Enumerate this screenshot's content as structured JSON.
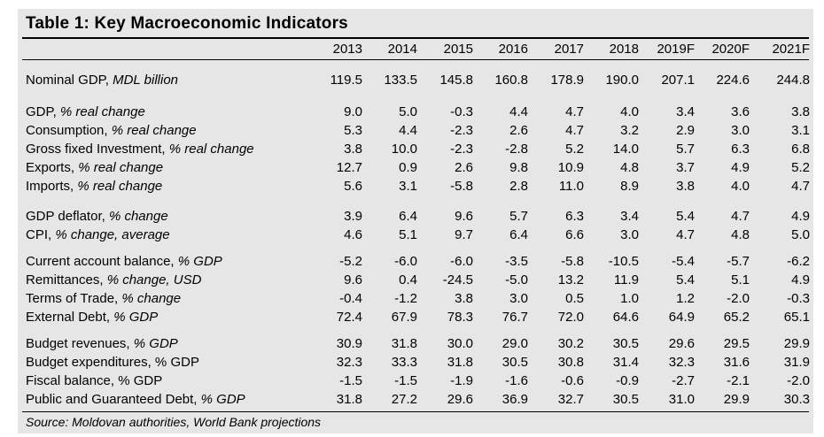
{
  "title": "Table 1: Key Macroeconomic Indicators",
  "years": [
    "2013",
    "2014",
    "2015",
    "2016",
    "2017",
    "2018",
    "2019F",
    "2020F",
    "2021F"
  ],
  "rows": [
    {
      "label": "Nominal GDP, ",
      "unit": "MDL billion",
      "values": [
        "119.5",
        "133.5",
        "145.8",
        "160.8",
        "178.9",
        "190.0",
        "207.1",
        "224.6",
        "244.8"
      ]
    },
    {
      "label": "GDP, ",
      "unit": "% real change",
      "values": [
        "9.0",
        "5.0",
        "-0.3",
        "4.4",
        "4.7",
        "4.0",
        "3.4",
        "3.6",
        "3.8"
      ]
    },
    {
      "label": "Consumption, ",
      "unit": "% real change",
      "values": [
        "5.3",
        "4.4",
        "-2.3",
        "2.6",
        "4.7",
        "3.2",
        "2.9",
        "3.0",
        "3.1"
      ]
    },
    {
      "label": "Gross fixed Investment, ",
      "unit": "% real change",
      "values": [
        "3.8",
        "10.0",
        "-2.3",
        "-2.8",
        "5.2",
        "14.0",
        "5.7",
        "6.3",
        "6.8"
      ]
    },
    {
      "label": "Exports, ",
      "unit": "% real change",
      "values": [
        "12.7",
        "0.9",
        "2.6",
        "9.8",
        "10.9",
        "4.8",
        "3.7",
        "4.9",
        "5.2"
      ]
    },
    {
      "label": "Imports, ",
      "unit": "% real change",
      "values": [
        "5.6",
        "3.1",
        "-5.8",
        "2.8",
        "11.0",
        "8.9",
        "3.8",
        "4.0",
        "4.7"
      ]
    },
    {
      "label": "GDP deflator, ",
      "unit": "% change",
      "values": [
        "3.9",
        "6.4",
        "9.6",
        "5.7",
        "6.3",
        "3.4",
        "5.4",
        "4.7",
        "4.9"
      ]
    },
    {
      "label": "CPI, ",
      "unit": "% change, average",
      "values": [
        "4.6",
        "5.1",
        "9.7",
        "6.4",
        "6.6",
        "3.0",
        "4.7",
        "4.8",
        "5.0"
      ]
    },
    {
      "label": "Current account balance, ",
      "unit": "% GDP",
      "values": [
        "-5.2",
        "-6.0",
        "-6.0",
        "-3.5",
        "-5.8",
        "-10.5",
        "-5.4",
        "-5.7",
        "-6.2"
      ]
    },
    {
      "label": "Remittances, ",
      "unit": "% change, USD",
      "values": [
        "9.6",
        "0.4",
        "-24.5",
        "-5.0",
        "13.2",
        "11.9",
        "5.4",
        "5.1",
        "4.9"
      ]
    },
    {
      "label": "Terms of Trade, ",
      "unit": "% change",
      "values": [
        "-0.4",
        "-1.2",
        "3.8",
        "3.0",
        "0.5",
        "1.0",
        "1.2",
        "-2.0",
        "-0.3"
      ]
    },
    {
      "label": "External Debt, ",
      "unit": "% GDP",
      "values": [
        "72.4",
        "67.9",
        "78.3",
        "76.7",
        "72.0",
        "64.6",
        "64.9",
        "65.2",
        "65.1"
      ]
    },
    {
      "label": "Budget revenues, ",
      "unit": "% GDP",
      "values": [
        "30.9",
        "31.8",
        "30.0",
        "29.0",
        "30.2",
        "30.5",
        "29.6",
        "29.5",
        "29.9"
      ]
    },
    {
      "label": "Budget expenditures, % GDP",
      "unit": "",
      "values": [
        "32.3",
        "33.3",
        "31.8",
        "30.5",
        "30.8",
        "31.4",
        "32.3",
        "31.6",
        "31.9"
      ]
    },
    {
      "label": "Fiscal balance, % GDP",
      "unit": "",
      "values": [
        "-1.5",
        "-1.5",
        "-1.9",
        "-1.6",
        "-0.6",
        "-0.9",
        "-2.7",
        "-2.1",
        "-2.0"
      ]
    },
    {
      "label": "Public and Guaranteed Debt, ",
      "unit": "% GDP",
      "values": [
        "31.8",
        "27.2",
        "29.6",
        "36.9",
        "32.7",
        "30.5",
        "31.0",
        "29.9",
        "30.3"
      ]
    }
  ],
  "source": "Source: Moldovan authorities, World Bank projections"
}
